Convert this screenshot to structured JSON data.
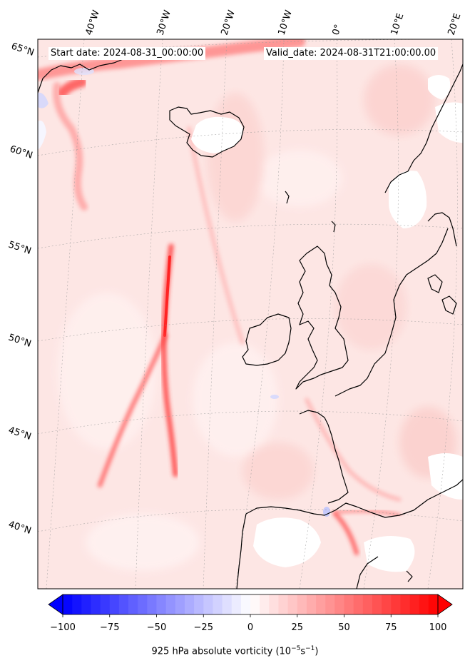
{
  "map": {
    "start_date_text": "Start date: 2024-08-31_00:00:00",
    "valid_date_text": "Valid_date: 2024-08-31T21:00:00.00",
    "lon_labels": [
      "40°W",
      "30°W",
      "20°W",
      "10°W",
      "0°",
      "10°E",
      "20°E"
    ],
    "lat_labels": [
      "65°N",
      "60°N",
      "55°N",
      "50°N",
      "45°N",
      "40°N"
    ],
    "colors": {
      "positive": "#ff0000",
      "negative": "#0000ff",
      "background_tint": "#fde0de",
      "coastline": "#000000"
    }
  },
  "colorbar": {
    "title_prefix": "925 hPa absolute vorticity (10",
    "title_exp1": "−5",
    "title_mid": "s",
    "title_exp2": "−1",
    "title_suffix": ")",
    "ticks": [
      -100,
      -75,
      -50,
      -25,
      0,
      25,
      50,
      75,
      100
    ],
    "tick_labels": [
      "−100",
      "−75",
      "−50",
      "−25",
      "0",
      "25",
      "50",
      "75",
      "100"
    ],
    "range": [
      -100,
      100
    ],
    "levels": 40,
    "extend": "both"
  }
}
